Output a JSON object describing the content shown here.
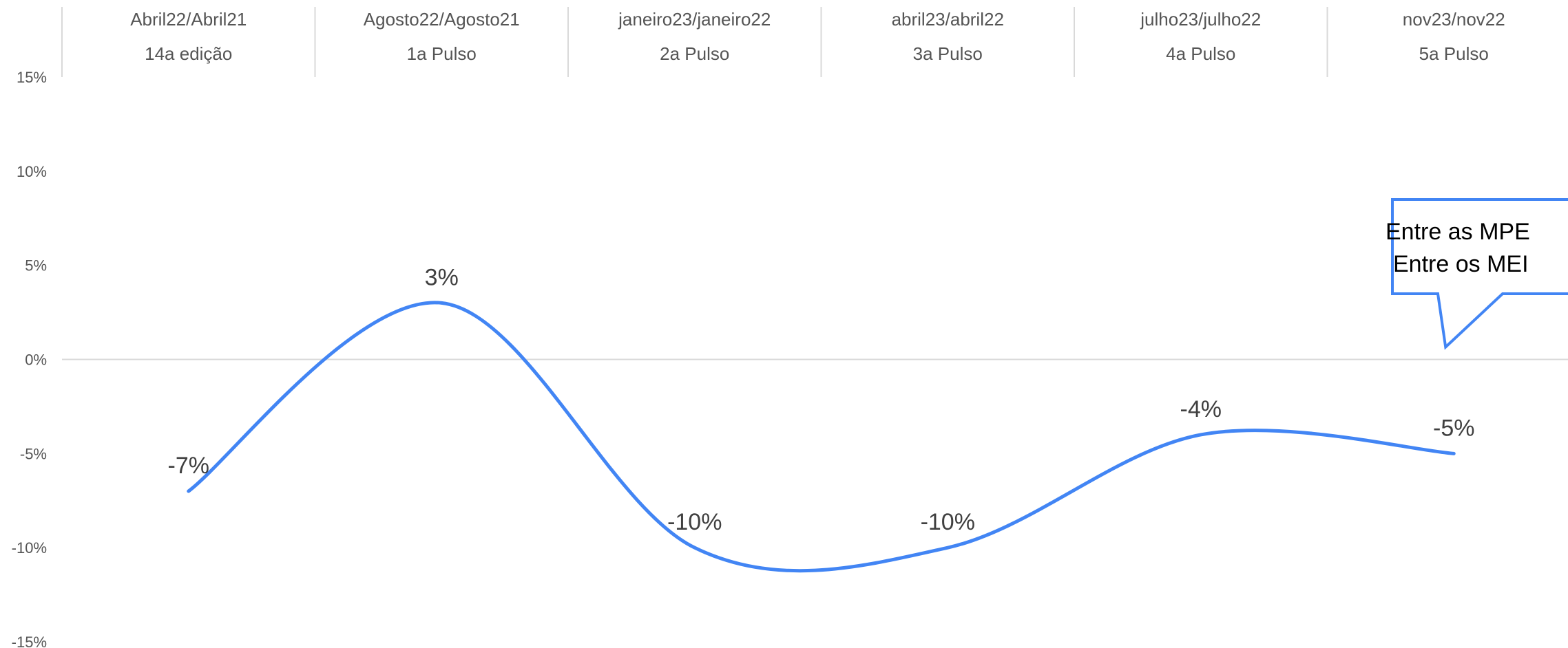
{
  "chart_data": {
    "type": "line",
    "categories": [
      {
        "period": "Abril22/Abril21",
        "edition": "14a edição"
      },
      {
        "period": "Agosto22/Agosto21",
        "edition": "1a Pulso"
      },
      {
        "period": "janeiro23/janeiro22",
        "edition": "2a Pulso"
      },
      {
        "period": "abril23/abril22",
        "edition": "3a Pulso"
      },
      {
        "period": "julho23/julho22",
        "edition": "4a Pulso"
      },
      {
        "period": "nov23/nov22",
        "edition": "5a Pulso"
      }
    ],
    "series": [
      {
        "values": [
          -7,
          3,
          -10,
          -10,
          -4,
          -5
        ],
        "color": "#4285f4"
      }
    ],
    "data_labels": [
      "-7%",
      "3%",
      "-10%",
      "-10%",
      "-4%",
      "-5%"
    ],
    "ylim": [
      -15,
      15
    ],
    "yticks": [
      15,
      10,
      5,
      0,
      -5,
      -10,
      -15
    ],
    "ytick_labels": [
      "15%",
      "10%",
      "5%",
      "0%",
      "-5%",
      "-10%",
      "-15%"
    ],
    "smooth": true,
    "grid": false,
    "callout": {
      "lines": [
        "Entre as MPE",
        "Entre os MEI"
      ],
      "border_color": "#4285f4",
      "points_to_category_index": 5,
      "points_to_value": 0
    },
    "colors": {
      "axis": "#d9d9d9",
      "text": "#555555"
    }
  }
}
